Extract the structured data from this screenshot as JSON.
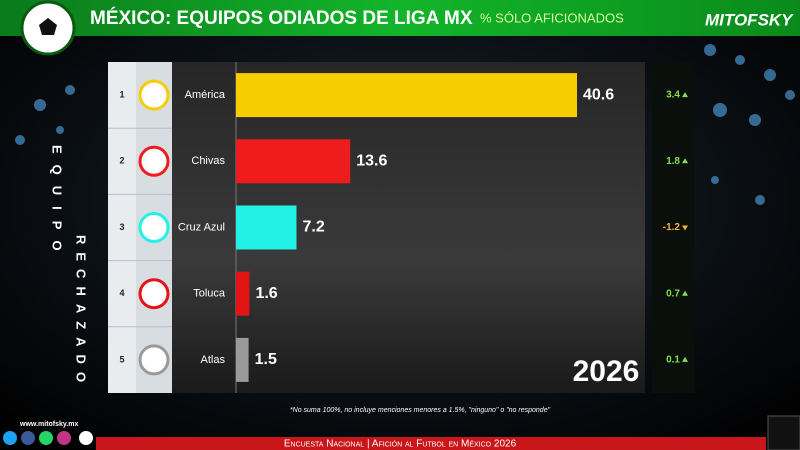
{
  "chart_data": {
    "type": "bar",
    "orientation": "horizontal",
    "title": "MÉXICO: EQUIPOS ODIADOS DE LIGA MX",
    "subtitle": "% SÓLO AFICIONADOS",
    "brand": "MITOFSKY",
    "side_label_top": "EQUIPO",
    "side_label_bottom": "RECHAZADO",
    "ranks": [
      1,
      2,
      3,
      4,
      5
    ],
    "categories": [
      "América",
      "Chivas",
      "Cruz Azul",
      "Toluca",
      "Atlas"
    ],
    "values": [
      40.6,
      13.6,
      7.2,
      1.6,
      1.5
    ],
    "colors": [
      "#f7cc00",
      "#ee1c1c",
      "#22f2e6",
      "#e31414",
      "#9a9a9a"
    ],
    "changes": [
      3.4,
      1.8,
      -1.2,
      0.7,
      0.1
    ],
    "up_color": "#7ee04c",
    "down_color": "#f2b233",
    "year": "2026",
    "footnote": "*No suma 100%, no incluye menciones menores a 1.5%, \"ninguno\" o \"no responde\"",
    "website": "www.mitofsky.mx",
    "footer": "Encuesta Nacional | Afición al Futbol en México 2026"
  }
}
